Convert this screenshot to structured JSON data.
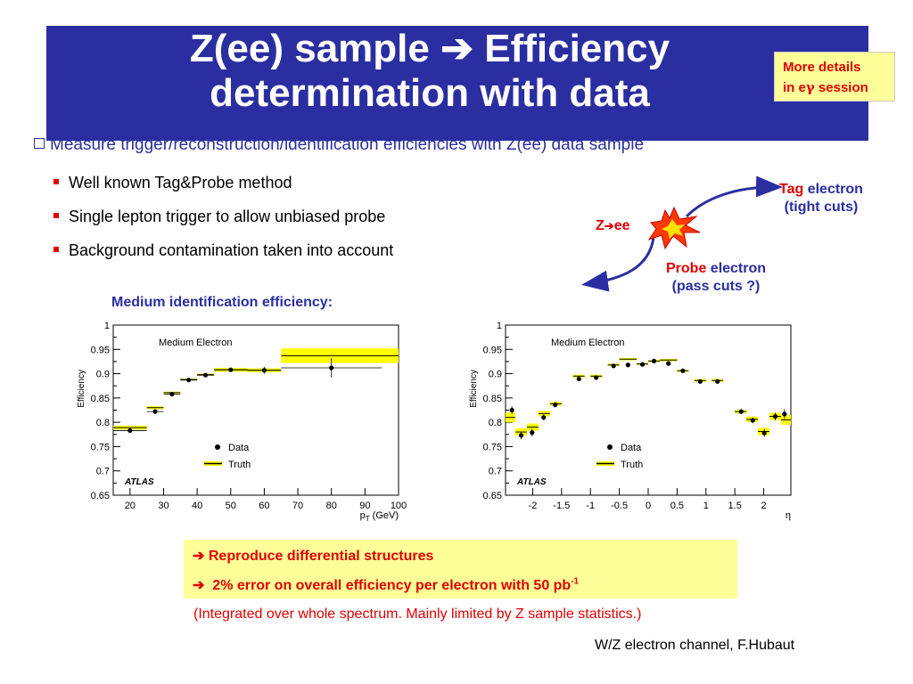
{
  "title": {
    "line1": "Z(ee) sample",
    "arrow": "➔",
    "line1b": "Efficiency",
    "line2": "determination with data"
  },
  "more_details": {
    "line1": "More details",
    "line2a": "in e",
    "gamma": "γ",
    "line2b": " session"
  },
  "main_bullet": "Measure trigger/reconstruction/identification efficiencies with Z(ee) data sample",
  "sub_bullets": [
    "Well known Tag&Probe method",
    "Single lepton trigger to allow unbiased probe",
    "Background contamination taken into account"
  ],
  "diagram": {
    "z_label": "Z",
    "z_arrow": "➔",
    "z_ee": "ee",
    "tag": {
      "word": "Tag",
      "rest": " electron",
      "cuts": "(tight cuts)"
    },
    "probe": {
      "word": "Probe",
      "rest": " electron",
      "cuts": "(pass cuts ?)"
    }
  },
  "medium_title": "Medium identification efficiency:",
  "chart_data": [
    {
      "type": "scatter",
      "title": "Medium Electron",
      "ylabel": "Efficiency",
      "xlabel": "p",
      "xlabel_sub": "T",
      "xlabel_unit": " (GeV)",
      "xlim": [
        15,
        100
      ],
      "ylim": [
        0.65,
        1.0
      ],
      "xticks": [
        20,
        30,
        40,
        50,
        60,
        70,
        80,
        90,
        100
      ],
      "yticks": [
        0.65,
        0.7,
        0.75,
        0.8,
        0.85,
        0.9,
        0.95,
        1
      ],
      "legend": {
        "data": "Data",
        "truth": "Truth",
        "placement": "bottom-left"
      },
      "watermark": "ATLAS",
      "series": [
        {
          "name": "Data",
          "points": [
            {
              "x": 20,
              "y": 0.783,
              "xerr": 5,
              "yerr": 0.002
            },
            {
              "x": 27.5,
              "y": 0.822,
              "xerr": 2.5,
              "yerr": 0.002
            },
            {
              "x": 32.5,
              "y": 0.858,
              "xerr": 2.5,
              "yerr": 0.002
            },
            {
              "x": 37.5,
              "y": 0.887,
              "xerr": 2.5,
              "yerr": 0.002
            },
            {
              "x": 42.5,
              "y": 0.897,
              "xerr": 2.5,
              "yerr": 0.002
            },
            {
              "x": 50,
              "y": 0.908,
              "xerr": 5,
              "yerr": 0.004
            },
            {
              "x": 60,
              "y": 0.907,
              "xerr": 5,
              "yerr": 0.007
            },
            {
              "x": 80,
              "y": 0.912,
              "xerr": 15,
              "yerr": 0.02
            }
          ]
        },
        {
          "name": "Truth",
          "bins": [
            {
              "x0": 15,
              "x1": 25,
              "y": 0.789,
              "h": 0.008
            },
            {
              "x0": 25,
              "x1": 30,
              "y": 0.83,
              "h": 0.006
            },
            {
              "x0": 30,
              "x1": 35,
              "y": 0.861,
              "h": 0.004
            },
            {
              "x0": 35,
              "x1": 40,
              "y": 0.888,
              "h": 0.004
            },
            {
              "x0": 40,
              "x1": 45,
              "y": 0.898,
              "h": 0.004
            },
            {
              "x0": 45,
              "x1": 55,
              "y": 0.908,
              "h": 0.008
            },
            {
              "x0": 55,
              "x1": 65,
              "y": 0.907,
              "h": 0.008
            },
            {
              "x0": 65,
              "x1": 100,
              "y": 0.937,
              "h": 0.03
            }
          ]
        }
      ]
    },
    {
      "type": "scatter",
      "title": "Medium Electron",
      "ylabel": "Efficiency",
      "xlabel": "η",
      "xlim": [
        -2.47,
        2.47
      ],
      "ylim": [
        0.65,
        1.0
      ],
      "xticks": [
        -2,
        -1.5,
        -1,
        -0.5,
        0,
        0.5,
        1,
        1.5,
        2
      ],
      "yticks": [
        0.65,
        0.7,
        0.75,
        0.8,
        0.85,
        0.9,
        0.95,
        1
      ],
      "legend": {
        "data": "Data",
        "truth": "Truth",
        "placement": "bottom-left"
      },
      "watermark": "ATLAS",
      "series": [
        {
          "name": "Data",
          "points": [
            {
              "x": -2.36,
              "y": 0.825,
              "yerr": 0.008
            },
            {
              "x": -2.2,
              "y": 0.773,
              "yerr": 0.008
            },
            {
              "x": -2.01,
              "y": 0.779,
              "yerr": 0.008
            },
            {
              "x": -1.81,
              "y": 0.81,
              "yerr": 0.006
            },
            {
              "x": -1.61,
              "y": 0.836,
              "yerr": 0.005
            },
            {
              "x": -1.2,
              "y": 0.889,
              "yerr": 0.004
            },
            {
              "x": -0.9,
              "y": 0.892,
              "yerr": 0.004
            },
            {
              "x": -0.6,
              "y": 0.916,
              "yerr": 0.004
            },
            {
              "x": -0.35,
              "y": 0.918,
              "yerr": 0.003
            },
            {
              "x": -0.1,
              "y": 0.919,
              "yerr": 0.003
            },
            {
              "x": 0.1,
              "y": 0.926,
              "yerr": 0.003
            },
            {
              "x": 0.35,
              "y": 0.921,
              "yerr": 0.003
            },
            {
              "x": 0.6,
              "y": 0.906,
              "yerr": 0.004
            },
            {
              "x": 0.9,
              "y": 0.884,
              "yerr": 0.004
            },
            {
              "x": 1.2,
              "y": 0.884,
              "yerr": 0.004
            },
            {
              "x": 1.61,
              "y": 0.822,
              "yerr": 0.005
            },
            {
              "x": 1.81,
              "y": 0.804,
              "yerr": 0.006
            },
            {
              "x": 2.01,
              "y": 0.778,
              "yerr": 0.008
            },
            {
              "x": 2.2,
              "y": 0.812,
              "yerr": 0.008
            },
            {
              "x": 2.36,
              "y": 0.817,
              "yerr": 0.01
            }
          ]
        },
        {
          "name": "Truth",
          "bins": [
            {
              "x0": -2.47,
              "x1": -2.3,
              "y": 0.81,
              "h": 0.02
            },
            {
              "x0": -2.3,
              "x1": -2.1,
              "y": 0.78,
              "h": 0.015
            },
            {
              "x0": -2.1,
              "x1": -1.9,
              "y": 0.79,
              "h": 0.015
            },
            {
              "x0": -1.9,
              "x1": -1.7,
              "y": 0.818,
              "h": 0.012
            },
            {
              "x0": -1.7,
              "x1": -1.5,
              "y": 0.838,
              "h": 0.008
            },
            {
              "x0": -1.3,
              "x1": -1.1,
              "y": 0.895,
              "h": 0.006
            },
            {
              "x0": -1.0,
              "x1": -0.8,
              "y": 0.895,
              "h": 0.006
            },
            {
              "x0": -0.7,
              "x1": -0.5,
              "y": 0.918,
              "h": 0.005
            },
            {
              "x0": -0.5,
              "x1": -0.2,
              "y": 0.93,
              "h": 0.005
            },
            {
              "x0": -0.2,
              "x1": 0.0,
              "y": 0.92,
              "h": 0.004
            },
            {
              "x0": 0.0,
              "x1": 0.2,
              "y": 0.926,
              "h": 0.004
            },
            {
              "x0": 0.2,
              "x1": 0.5,
              "y": 0.928,
              "h": 0.005
            },
            {
              "x0": 0.5,
              "x1": 0.7,
              "y": 0.906,
              "h": 0.005
            },
            {
              "x0": 0.8,
              "x1": 1.0,
              "y": 0.886,
              "h": 0.006
            },
            {
              "x0": 1.1,
              "x1": 1.3,
              "y": 0.886,
              "h": 0.006
            },
            {
              "x0": 1.5,
              "x1": 1.7,
              "y": 0.822,
              "h": 0.008
            },
            {
              "x0": 1.7,
              "x1": 1.9,
              "y": 0.806,
              "h": 0.012
            },
            {
              "x0": 1.9,
              "x1": 2.1,
              "y": 0.781,
              "h": 0.015
            },
            {
              "x0": 2.1,
              "x1": 2.3,
              "y": 0.812,
              "h": 0.015
            },
            {
              "x0": 2.3,
              "x1": 2.47,
              "y": 0.805,
              "h": 0.02
            }
          ]
        }
      ]
    }
  ],
  "conclusions": {
    "line1": "Reproduce differential structures",
    "line2": "2% error on overall efficiency per electron with 50 pb",
    "line2_sup": "-1",
    "arrow": "➔",
    "note": "(Integrated over whole spectrum. Mainly limited by Z sample statistics.)"
  },
  "footer": "W/Z electron channel, F.Hubaut",
  "colors": {
    "title_bg": "#2a2ea0",
    "accent_red": "#e00000",
    "highlight_yellow": "#ffff99",
    "truth_yellow": "#ffff00"
  }
}
